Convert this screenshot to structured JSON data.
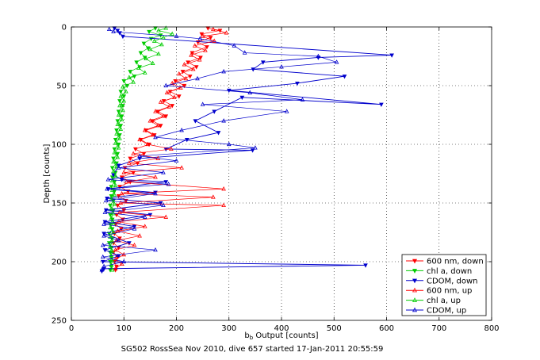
{
  "chart_data": {
    "type": "scatter",
    "title": "",
    "xlabel": "b_b Output [counts]",
    "ylabel": "Depth [counts]",
    "caption": "SG502 RossSea Nov 2010, dive 657 started 17-Jan-2011 20:55:59",
    "xlim": [
      0,
      800
    ],
    "ylim": [
      0,
      250
    ],
    "y_reversed": true,
    "xticks": [
      0,
      100,
      200,
      300,
      400,
      500,
      600,
      700,
      800
    ],
    "yticks": [
      0,
      50,
      100,
      150,
      200,
      250
    ],
    "grid": true,
    "grid_style": "dotted",
    "legend_position": "lower-right",
    "series": [
      {
        "name": "600 nm, down",
        "color": "#ff0000",
        "marker": "triangle-down",
        "points": [
          [
            260,
            1
          ],
          [
            283,
            3
          ],
          [
            248,
            6
          ],
          [
            265,
            9
          ],
          [
            241,
            13
          ],
          [
            258,
            17
          ],
          [
            230,
            22
          ],
          [
            246,
            26
          ],
          [
            222,
            30
          ],
          [
            238,
            34
          ],
          [
            212,
            38
          ],
          [
            226,
            42
          ],
          [
            198,
            46
          ],
          [
            215,
            50
          ],
          [
            188,
            55
          ],
          [
            205,
            59
          ],
          [
            176,
            63
          ],
          [
            192,
            67
          ],
          [
            165,
            72
          ],
          [
            180,
            76
          ],
          [
            155,
            80
          ],
          [
            170,
            84
          ],
          [
            142,
            88
          ],
          [
            158,
            92
          ],
          [
            132,
            96
          ],
          [
            148,
            100
          ],
          [
            122,
            104
          ],
          [
            138,
            108
          ],
          [
            112,
            112
          ],
          [
            126,
            116
          ],
          [
            102,
            120
          ],
          [
            118,
            124
          ],
          [
            96,
            128
          ],
          [
            112,
            132
          ],
          [
            92,
            136
          ],
          [
            108,
            140
          ],
          [
            90,
            144
          ],
          [
            104,
            148
          ],
          [
            88,
            152
          ],
          [
            100,
            156
          ],
          [
            86,
            160
          ],
          [
            98,
            164
          ],
          [
            84,
            168
          ],
          [
            95,
            172
          ],
          [
            82,
            176
          ],
          [
            92,
            180
          ],
          [
            80,
            184
          ],
          [
            90,
            188
          ],
          [
            80,
            192
          ],
          [
            88,
            196
          ],
          [
            82,
            200
          ],
          [
            86,
            204
          ],
          [
            84,
            207
          ]
        ]
      },
      {
        "name": "chl a, down",
        "color": "#00cc00",
        "marker": "triangle-down",
        "points": [
          [
            160,
            1
          ],
          [
            148,
            4
          ],
          [
            170,
            7
          ],
          [
            152,
            10
          ],
          [
            138,
            14
          ],
          [
            146,
            18
          ],
          [
            132,
            22
          ],
          [
            140,
            26
          ],
          [
            124,
            30
          ],
          [
            130,
            34
          ],
          [
            112,
            38
          ],
          [
            120,
            42
          ],
          [
            100,
            46
          ],
          [
            106,
            50
          ],
          [
            94,
            55
          ],
          [
            100,
            59
          ],
          [
            92,
            63
          ],
          [
            98,
            67
          ],
          [
            90,
            72
          ],
          [
            96,
            76
          ],
          [
            88,
            80
          ],
          [
            94,
            84
          ],
          [
            86,
            88
          ],
          [
            92,
            92
          ],
          [
            84,
            96
          ],
          [
            90,
            100
          ],
          [
            82,
            104
          ],
          [
            88,
            108
          ],
          [
            80,
            112
          ],
          [
            86,
            116
          ],
          [
            78,
            120
          ],
          [
            84,
            124
          ],
          [
            78,
            128
          ],
          [
            82,
            132
          ],
          [
            76,
            136
          ],
          [
            82,
            140
          ],
          [
            76,
            144
          ],
          [
            80,
            148
          ],
          [
            74,
            152
          ],
          [
            80,
            156
          ],
          [
            74,
            160
          ],
          [
            78,
            164
          ],
          [
            74,
            168
          ],
          [
            78,
            172
          ],
          [
            72,
            176
          ],
          [
            78,
            180
          ],
          [
            72,
            184
          ],
          [
            76,
            188
          ],
          [
            74,
            192
          ],
          [
            76,
            196
          ],
          [
            74,
            200
          ],
          [
            76,
            204
          ],
          [
            74,
            207
          ]
        ]
      },
      {
        "name": "CDOM, down",
        "color": "#0000cc",
        "marker": "triangle-down",
        "points": [
          [
            82,
            1
          ],
          [
            88,
            3
          ],
          [
            92,
            5
          ],
          [
            98,
            8
          ],
          [
            610,
            24
          ],
          [
            470,
            26
          ],
          [
            365,
            30
          ],
          [
            346,
            36
          ],
          [
            520,
            42
          ],
          [
            430,
            48
          ],
          [
            300,
            54
          ],
          [
            590,
            66
          ],
          [
            325,
            60
          ],
          [
            272,
            72
          ],
          [
            236,
            80
          ],
          [
            280,
            90
          ],
          [
            220,
            96
          ],
          [
            180,
            104
          ],
          [
            345,
            105
          ],
          [
            130,
            112
          ],
          [
            90,
            118
          ],
          [
            80,
            126
          ],
          [
            96,
            130
          ],
          [
            180,
            132
          ],
          [
            70,
            138
          ],
          [
            160,
            141
          ],
          [
            68,
            146
          ],
          [
            170,
            150
          ],
          [
            66,
            156
          ],
          [
            150,
            160
          ],
          [
            64,
            166
          ],
          [
            120,
            170
          ],
          [
            62,
            176
          ],
          [
            110,
            184
          ],
          [
            64,
            190
          ],
          [
            90,
            195
          ],
          [
            60,
            200
          ],
          [
            560,
            203
          ],
          [
            62,
            206
          ],
          [
            58,
            208
          ]
        ]
      },
      {
        "name": "600 nm, up",
        "color": "#ff0000",
        "marker": "triangle-up",
        "points": [
          [
            270,
            2
          ],
          [
            295,
            5
          ],
          [
            250,
            8
          ],
          [
            272,
            12
          ],
          [
            235,
            16
          ],
          [
            255,
            20
          ],
          [
            228,
            24
          ],
          [
            244,
            28
          ],
          [
            215,
            32
          ],
          [
            232,
            36
          ],
          [
            205,
            40
          ],
          [
            218,
            44
          ],
          [
            192,
            48
          ],
          [
            208,
            52
          ],
          [
            182,
            56
          ],
          [
            196,
            60
          ],
          [
            170,
            64
          ],
          [
            186,
            68
          ],
          [
            160,
            72
          ],
          [
            175,
            76
          ],
          [
            150,
            80
          ],
          [
            165,
            84
          ],
          [
            140,
            88
          ],
          [
            155,
            92
          ],
          [
            130,
            96
          ],
          [
            145,
            100
          ],
          [
            190,
            104
          ],
          [
            118,
            108
          ],
          [
            165,
            112
          ],
          [
            110,
            116
          ],
          [
            210,
            120
          ],
          [
            100,
            124
          ],
          [
            160,
            128
          ],
          [
            105,
            132
          ],
          [
            290,
            138
          ],
          [
            96,
            142
          ],
          [
            270,
            145
          ],
          [
            94,
            150
          ],
          [
            290,
            152
          ],
          [
            92,
            158
          ],
          [
            180,
            162
          ],
          [
            90,
            166
          ],
          [
            140,
            170
          ],
          [
            88,
            174
          ],
          [
            130,
            178
          ],
          [
            86,
            182
          ],
          [
            120,
            186
          ],
          [
            84,
            190
          ],
          [
            100,
            194
          ],
          [
            84,
            198
          ],
          [
            96,
            202
          ],
          [
            84,
            206
          ]
        ]
      },
      {
        "name": "chl a, up",
        "color": "#00cc00",
        "marker": "triangle-up",
        "points": [
          [
            180,
            1
          ],
          [
            166,
            3
          ],
          [
            192,
            6
          ],
          [
            175,
            9
          ],
          [
            158,
            12
          ],
          [
            172,
            15
          ],
          [
            150,
            19
          ],
          [
            166,
            23
          ],
          [
            142,
            27
          ],
          [
            155,
            31
          ],
          [
            128,
            35
          ],
          [
            140,
            39
          ],
          [
            110,
            43
          ],
          [
            118,
            47
          ],
          [
            98,
            51
          ],
          [
            104,
            55
          ],
          [
            94,
            59
          ],
          [
            100,
            63
          ],
          [
            92,
            67
          ],
          [
            98,
            71
          ],
          [
            90,
            75
          ],
          [
            96,
            79
          ],
          [
            88,
            83
          ],
          [
            94,
            87
          ],
          [
            86,
            91
          ],
          [
            92,
            95
          ],
          [
            84,
            99
          ],
          [
            90,
            103
          ],
          [
            82,
            107
          ],
          [
            88,
            111
          ],
          [
            80,
            115
          ],
          [
            86,
            119
          ],
          [
            80,
            123
          ],
          [
            84,
            127
          ],
          [
            78,
            131
          ],
          [
            84,
            135
          ],
          [
            78,
            139
          ],
          [
            82,
            143
          ],
          [
            76,
            147
          ],
          [
            82,
            151
          ],
          [
            76,
            155
          ],
          [
            80,
            159
          ],
          [
            76,
            163
          ],
          [
            80,
            167
          ],
          [
            74,
            171
          ],
          [
            80,
            175
          ],
          [
            74,
            179
          ],
          [
            78,
            183
          ],
          [
            74,
            187
          ],
          [
            78,
            191
          ],
          [
            76,
            195
          ],
          [
            78,
            199
          ],
          [
            76,
            203
          ],
          [
            78,
            207
          ]
        ]
      },
      {
        "name": "CDOM, up",
        "color": "#0000cc",
        "marker": "triangle-up",
        "points": [
          [
            72,
            2
          ],
          [
            80,
            4
          ],
          [
            200,
            8
          ],
          [
            245,
            10
          ],
          [
            310,
            16
          ],
          [
            330,
            22
          ],
          [
            470,
            25
          ],
          [
            505,
            30
          ],
          [
            400,
            34
          ],
          [
            290,
            38
          ],
          [
            240,
            44
          ],
          [
            180,
            50
          ],
          [
            340,
            56
          ],
          [
            440,
            62
          ],
          [
            250,
            66
          ],
          [
            410,
            72
          ],
          [
            290,
            80
          ],
          [
            210,
            88
          ],
          [
            160,
            94
          ],
          [
            300,
            100
          ],
          [
            350,
            103
          ],
          [
            130,
            110
          ],
          [
            200,
            114
          ],
          [
            90,
            120
          ],
          [
            175,
            124
          ],
          [
            70,
            130
          ],
          [
            185,
            134
          ],
          [
            68,
            138
          ],
          [
            160,
            142
          ],
          [
            66,
            148
          ],
          [
            175,
            152
          ],
          [
            64,
            158
          ],
          [
            140,
            162
          ],
          [
            62,
            168
          ],
          [
            120,
            172
          ],
          [
            62,
            178
          ],
          [
            90,
            182
          ],
          [
            60,
            186
          ],
          [
            160,
            190
          ],
          [
            60,
            196
          ],
          [
            100,
            200
          ],
          [
            62,
            204
          ],
          [
            58,
            207
          ]
        ]
      }
    ]
  }
}
